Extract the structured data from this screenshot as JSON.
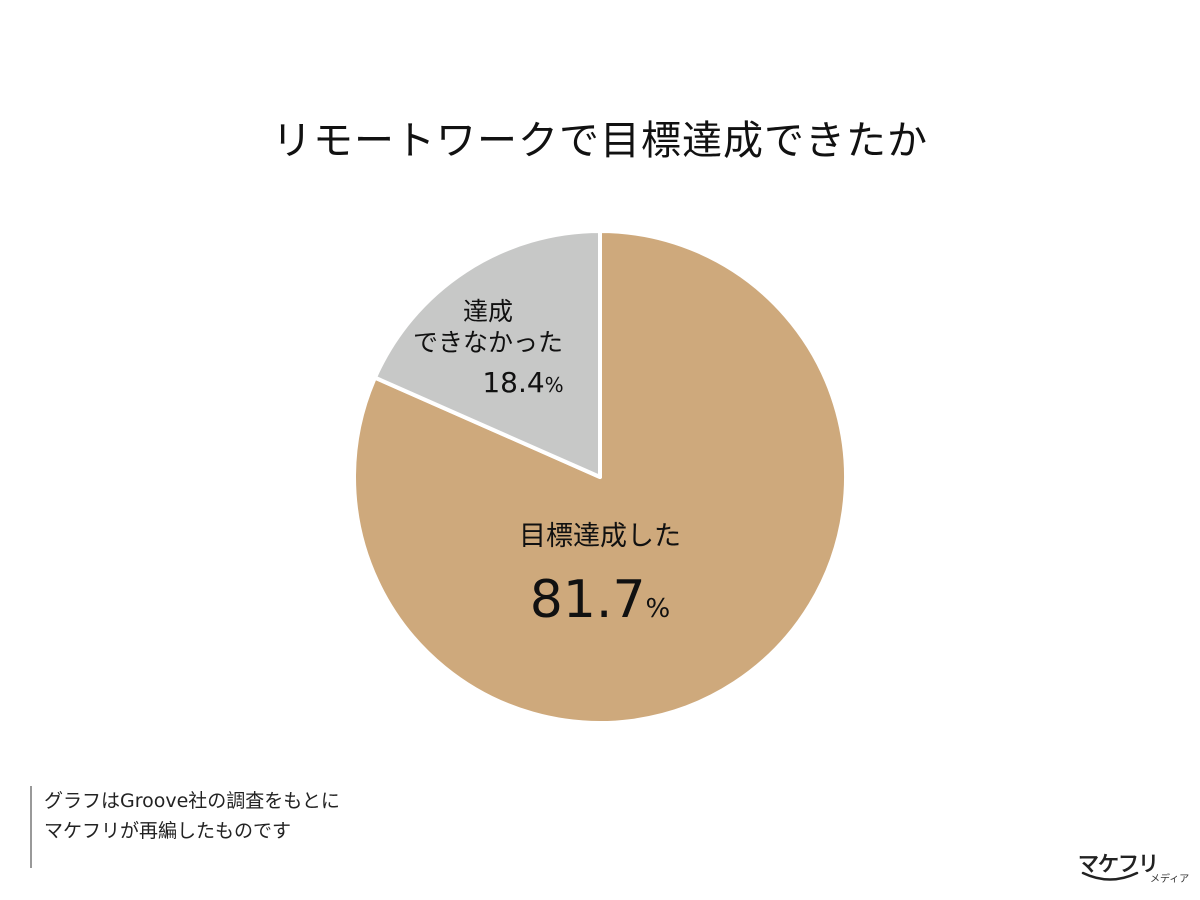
{
  "chart_data": {
    "type": "pie",
    "title": "リモートワークで目標達成できたか",
    "slices": [
      {
        "label": "目標達成した",
        "value": 81.7,
        "value_text": "81.7",
        "unit": "%",
        "color": "#cea97c"
      },
      {
        "label_lines": [
          "達成",
          "できなかった"
        ],
        "value": 18.4,
        "value_text": "18.4",
        "unit": "%",
        "color": "#c7c8c7"
      }
    ],
    "start_angle_deg": 0,
    "direction": "clockwise",
    "separator_color": "#ffffff",
    "legend": "none"
  },
  "source_note": {
    "lines": [
      "グラフはGroove社の調査をもとに",
      "マケフリが再編したものです"
    ]
  },
  "logo": {
    "main": "マケフリ",
    "sub": "メディア"
  }
}
